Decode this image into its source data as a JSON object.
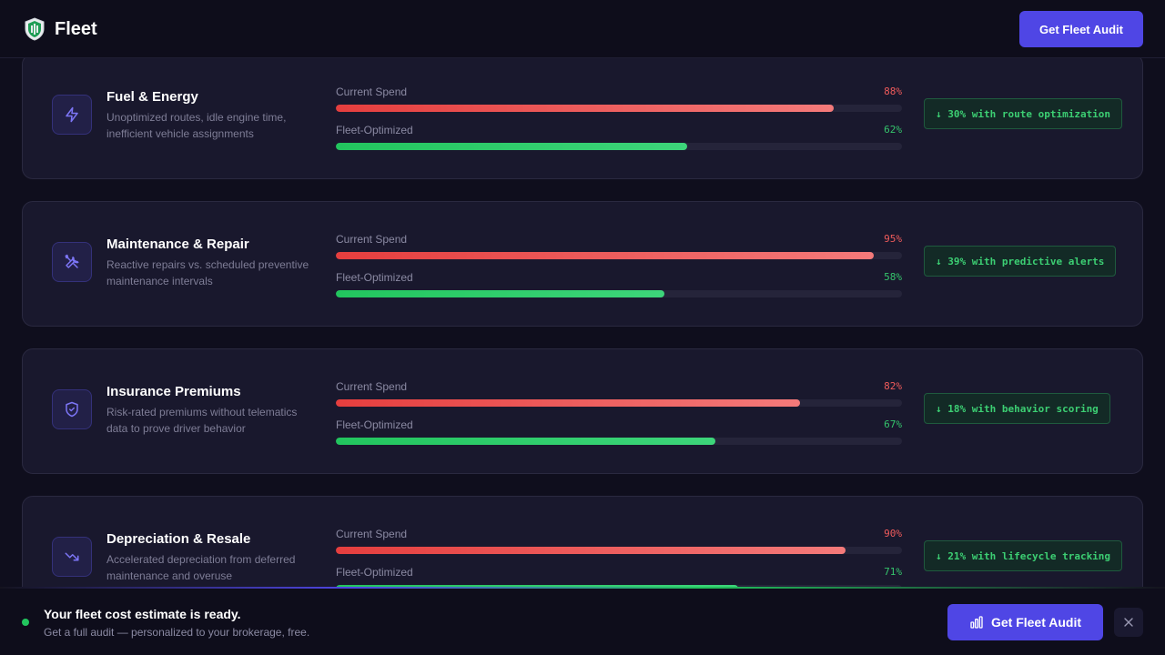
{
  "header": {
    "brand_name": "Fleet",
    "cta_label": "Get Fleet Audit",
    "logo_icon": "fleet-shield-logo"
  },
  "labels": {
    "current": "Current Spend",
    "optimized": "Fleet-Optimized"
  },
  "colors": {
    "accent": "#4f46e5",
    "current_bar": "#ef4444",
    "optimized_bar": "#22c55e",
    "background": "#0f0e1d",
    "card": "#19182d"
  },
  "categories": [
    {
      "title": "Fuel & Energy",
      "desc": "Unoptimized routes, idle engine time, inefficient vehicle assignments",
      "icon": "lightning-icon",
      "current_pct": "88%",
      "current_value": 0.88,
      "optimized_pct": "62%",
      "optimized_value": 0.62,
      "savings": "↓ 30% with route optimization"
    },
    {
      "title": "Maintenance & Repair",
      "desc": "Reactive repairs vs. scheduled preventive maintenance intervals",
      "icon": "wrench-screwdriver-icon",
      "current_pct": "95%",
      "current_value": 0.95,
      "optimized_pct": "58%",
      "optimized_value": 0.58,
      "savings": "↓ 39% with predictive alerts"
    },
    {
      "title": "Insurance Premiums",
      "desc": "Risk-rated premiums without telematics data to prove driver behavior",
      "icon": "shield-check-icon",
      "current_pct": "82%",
      "current_value": 0.82,
      "optimized_pct": "67%",
      "optimized_value": 0.67,
      "savings": "↓ 18% with behavior scoring"
    },
    {
      "title": "Depreciation & Resale",
      "desc": "Accelerated depreciation from deferred maintenance and overuse",
      "icon": "trending-down-icon",
      "current_pct": "90%",
      "current_value": 0.9,
      "optimized_pct": "71%",
      "optimized_value": 0.71,
      "savings": "↓ 21% with lifecycle tracking"
    }
  ],
  "banner": {
    "title": "Your fleet cost estimate is ready.",
    "subtitle": "Get a full audit — personalized to your brokerage, free.",
    "cta_label": "Get Fleet Audit",
    "cta_icon": "bar-chart-icon",
    "close_icon": "close-icon"
  }
}
